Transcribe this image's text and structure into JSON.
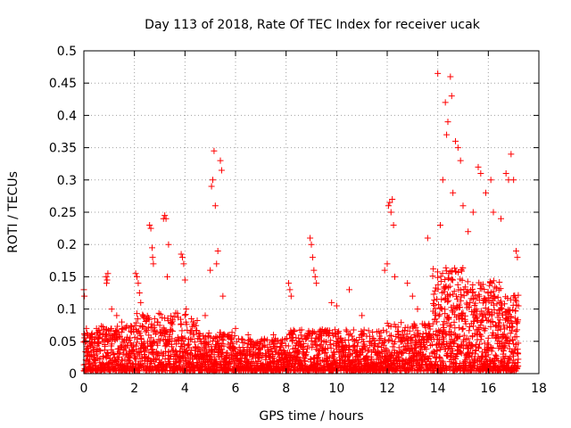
{
  "chart_data": {
    "type": "scatter",
    "title": "Day 113 of 2018, Rate Of TEC Index for receiver ucak",
    "xlabel": "GPS time / hours",
    "ylabel": "ROTI / TECUs",
    "xlim": [
      0,
      18
    ],
    "ylim": [
      0,
      0.5
    ],
    "xticks": [
      0,
      2,
      4,
      6,
      8,
      10,
      12,
      14,
      16,
      18
    ],
    "yticks": [
      0,
      0.05,
      0.1,
      0.15,
      0.2,
      0.25,
      0.3,
      0.35,
      0.4,
      0.45,
      0.5
    ],
    "xtick_labels": [
      "0",
      "2",
      "4",
      "6",
      "8",
      "10",
      "12",
      "14",
      "16",
      "18"
    ],
    "ytick_labels": [
      "0",
      "0.05",
      "0.1",
      "0.15",
      "0.2",
      "0.25",
      "0.3",
      "0.35",
      "0.4",
      "0.45",
      "0.5"
    ],
    "grid": true,
    "marker": "+",
    "marker_color": "#ff0000",
    "series": [
      {
        "name": "ROTI",
        "note": "dense band of points (values mostly 0.005-0.08) continuously from 0 to ~17.2 h, with the plotted outlier groups listed below",
        "points": [
          [
            0.0,
            0.13
          ],
          [
            0.02,
            0.12
          ],
          [
            0.1,
            0.07
          ],
          [
            0.3,
            0.06
          ],
          [
            0.5,
            0.07
          ],
          [
            0.88,
            0.15
          ],
          [
            0.9,
            0.14
          ],
          [
            0.92,
            0.145
          ],
          [
            0.95,
            0.155
          ],
          [
            1.1,
            0.1
          ],
          [
            1.3,
            0.09
          ],
          [
            1.5,
            0.08
          ],
          [
            2.05,
            0.155
          ],
          [
            2.1,
            0.15
          ],
          [
            2.15,
            0.14
          ],
          [
            2.2,
            0.125
          ],
          [
            2.25,
            0.11
          ],
          [
            2.6,
            0.23
          ],
          [
            2.65,
            0.225
          ],
          [
            2.7,
            0.195
          ],
          [
            2.72,
            0.18
          ],
          [
            2.75,
            0.17
          ],
          [
            3.15,
            0.24
          ],
          [
            3.2,
            0.245
          ],
          [
            3.25,
            0.24
          ],
          [
            3.3,
            0.15
          ],
          [
            3.35,
            0.2
          ],
          [
            3.85,
            0.185
          ],
          [
            3.9,
            0.18
          ],
          [
            3.95,
            0.17
          ],
          [
            4.0,
            0.145
          ],
          [
            4.05,
            0.1
          ],
          [
            4.8,
            0.09
          ],
          [
            5.0,
            0.16
          ],
          [
            5.05,
            0.29
          ],
          [
            5.1,
            0.3
          ],
          [
            5.15,
            0.345
          ],
          [
            5.2,
            0.26
          ],
          [
            5.25,
            0.17
          ],
          [
            5.3,
            0.19
          ],
          [
            5.4,
            0.33
          ],
          [
            5.45,
            0.315
          ],
          [
            5.5,
            0.12
          ],
          [
            6.0,
            0.07
          ],
          [
            6.5,
            0.06
          ],
          [
            7.0,
            0.05
          ],
          [
            7.5,
            0.06
          ],
          [
            8.1,
            0.14
          ],
          [
            8.15,
            0.13
          ],
          [
            8.2,
            0.12
          ],
          [
            8.95,
            0.21
          ],
          [
            9.0,
            0.2
          ],
          [
            9.05,
            0.18
          ],
          [
            9.1,
            0.16
          ],
          [
            9.15,
            0.15
          ],
          [
            9.2,
            0.14
          ],
          [
            9.8,
            0.11
          ],
          [
            10.0,
            0.105
          ],
          [
            10.5,
            0.13
          ],
          [
            11.0,
            0.09
          ],
          [
            11.9,
            0.16
          ],
          [
            12.0,
            0.17
          ],
          [
            12.05,
            0.26
          ],
          [
            12.1,
            0.265
          ],
          [
            12.15,
            0.25
          ],
          [
            12.2,
            0.27
          ],
          [
            12.25,
            0.23
          ],
          [
            12.3,
            0.15
          ],
          [
            12.8,
            0.14
          ],
          [
            13.0,
            0.12
          ],
          [
            13.2,
            0.1
          ],
          [
            13.6,
            0.21
          ],
          [
            14.0,
            0.465
          ],
          [
            14.1,
            0.23
          ],
          [
            14.2,
            0.3
          ],
          [
            14.3,
            0.42
          ],
          [
            14.35,
            0.37
          ],
          [
            14.4,
            0.39
          ],
          [
            14.5,
            0.46
          ],
          [
            14.55,
            0.43
          ],
          [
            14.6,
            0.28
          ],
          [
            14.7,
            0.36
          ],
          [
            14.8,
            0.35
          ],
          [
            14.9,
            0.33
          ],
          [
            15.0,
            0.26
          ],
          [
            15.2,
            0.22
          ],
          [
            15.4,
            0.25
          ],
          [
            15.6,
            0.32
          ],
          [
            15.7,
            0.31
          ],
          [
            15.9,
            0.28
          ],
          [
            16.1,
            0.3
          ],
          [
            16.2,
            0.25
          ],
          [
            16.5,
            0.24
          ],
          [
            16.7,
            0.31
          ],
          [
            16.8,
            0.3
          ],
          [
            16.9,
            0.34
          ],
          [
            17.0,
            0.3
          ],
          [
            17.1,
            0.19
          ],
          [
            17.15,
            0.18
          ]
        ]
      }
    ]
  }
}
